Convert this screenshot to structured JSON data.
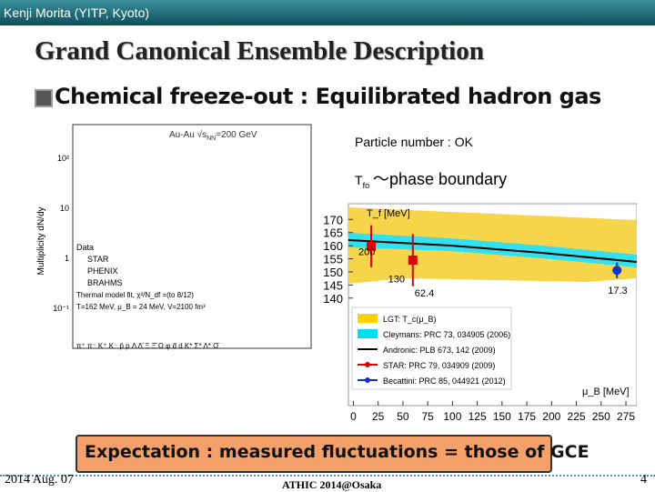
{
  "header": {
    "author": "Kenji Morita (YITP, Kyoto)"
  },
  "title": "Grand Canonical Ensemble Description",
  "bullet": "Chemical freeze-out : Equilibrated   hadron gas",
  "notes": {
    "particle": "Particle number  : OK",
    "tfo": {
      "symbol": "T",
      "sub": "fo",
      "text": "〜phase boundary"
    }
  },
  "left_figure": {
    "system": "Au-Au  √s",
    "sub": "NN",
    "energy": "=200 GeV",
    "ylabel": "Multiplicity dN/dy",
    "yticks": [
      "10²",
      "10",
      "1",
      "10⁻¹"
    ],
    "legend": [
      "Data",
      "STAR",
      "PHENIX",
      "BRAHMS",
      "Thermal model fit, χ²/N_df =(to 8/12)",
      "T=162 MeV, μ_B = 24 MeV, V=2100 fm³"
    ],
    "particles": "π⁺ π⁻ K⁺ K⁻ p̄ p  Λ  Λ̄  Ξ  Ξ̄  Ω  φ  d̄  d  K*  Σ*  Λ*  Ω̄"
  },
  "right_figure": {
    "ylabel": "T_f [MeV]",
    "xlabel": "μ_B [MeV]",
    "xlim": [
      -5,
      286
    ],
    "ylim": [
      99,
      176
    ],
    "yticks": [
      140,
      145,
      150,
      155,
      160,
      165,
      170
    ],
    "xticks": [
      0,
      25,
      50,
      75,
      100,
      125,
      150,
      175,
      200,
      225,
      250,
      275
    ],
    "points": [
      {
        "label": "200",
        "color": "#e00000",
        "x": 18,
        "y": 159.8,
        "yerr": 8
      },
      {
        "label": "130",
        "color": "#e00000",
        "x": 24,
        "y": 159.8,
        "yerr": 8
      },
      {
        "label": "62.4",
        "color": "#e00000",
        "x": 60,
        "y": 154.5,
        "yerr": 10
      },
      {
        "label": "17.3",
        "color": "#1030d0",
        "x": 266,
        "y": 150.6,
        "yerr": 3
      }
    ],
    "legend": [
      "LGT: T_c(μ_B)",
      "Cleymans: PRC 73, 034905 (2006)",
      "Andronic: PLB 673, 142 (2009)",
      "STAR: PRC 79, 034909 (2009)",
      "Becattini: PRC 85, 044921 (2012)"
    ]
  },
  "callout": "Expectation : measured fluctuations = those of GCE",
  "footer": {
    "date": "2014 Aug. 07",
    "event": "ATHIC 2014@Osaka",
    "page": "4"
  }
}
